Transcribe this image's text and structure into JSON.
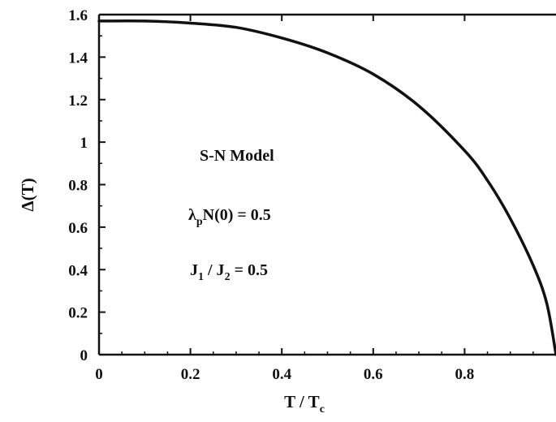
{
  "chart_data": {
    "type": "line",
    "title": "",
    "xlabel": "T / T",
    "xlabel_sub": "c",
    "ylabel": "Δ(T)",
    "xlim": [
      0,
      1
    ],
    "ylim": [
      0,
      1.6
    ],
    "grid": false,
    "legend": "none",
    "x_ticks": [
      0,
      0.2,
      0.4,
      0.6,
      0.8
    ],
    "x_tick_labels": [
      "0",
      "0.2",
      "0.4",
      "0.6",
      "0.8"
    ],
    "y_ticks": [
      0,
      0.2,
      0.4,
      0.6,
      0.8,
      1,
      1.2,
      1.4,
      1.6
    ],
    "y_tick_labels": [
      "0",
      "0.2",
      "0.4",
      "0.6",
      "0.8",
      "1",
      "1.2",
      "1.4",
      "1.6"
    ],
    "annotations": {
      "model": "S-N Model",
      "coupling": {
        "main": "λ",
        "sub": "p",
        "rest": "N(0) = 0.5"
      },
      "ratio": {
        "a": "J",
        "a_sub": "1",
        "mid": " / J",
        "b_sub": "2",
        "rest": " = 0.5"
      }
    },
    "series": [
      {
        "color": "#111111",
        "x": [
          0,
          0.1,
          0.2,
          0.3,
          0.4,
          0.5,
          0.6,
          0.7,
          0.8,
          0.85,
          0.9,
          0.95,
          0.98,
          1.0
        ],
        "y": [
          1.57,
          1.57,
          1.56,
          1.54,
          1.49,
          1.42,
          1.32,
          1.17,
          0.96,
          0.82,
          0.64,
          0.42,
          0.24,
          0.0
        ]
      }
    ]
  }
}
